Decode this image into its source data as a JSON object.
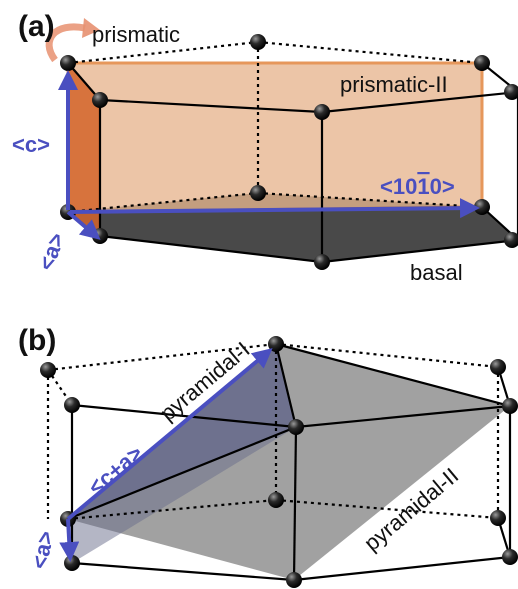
{
  "colors": {
    "vector_blue": "#4a4fc0",
    "prismatic_orange": "#e07a2e",
    "prismatic_fill": "#e7b68f",
    "basal_fill": "#3a3a3a",
    "pyramidal_fill": "#8a8a8a",
    "pyramidal_I_fill": "#6a6d8c",
    "atom": "#111111",
    "edge": "#000000"
  },
  "panel_a": {
    "label": "(a)",
    "prismatic_label": "prismatic",
    "prismatic_II_label": "prismatic-II",
    "basal_label": "basal",
    "c_vector_label": "<c>",
    "a_vector_label": "<a>",
    "direction_label_prefix": "<10",
    "direction_label_bar": "1",
    "direction_label_suffix": "0>"
  },
  "panel_b": {
    "label": "(b)",
    "pyramidal_I_label": "pyramidal-I",
    "pyramidal_II_label": "pyramidal-II",
    "c_plus_a_label": "<c+a>",
    "a_vector_label": "<a>"
  }
}
